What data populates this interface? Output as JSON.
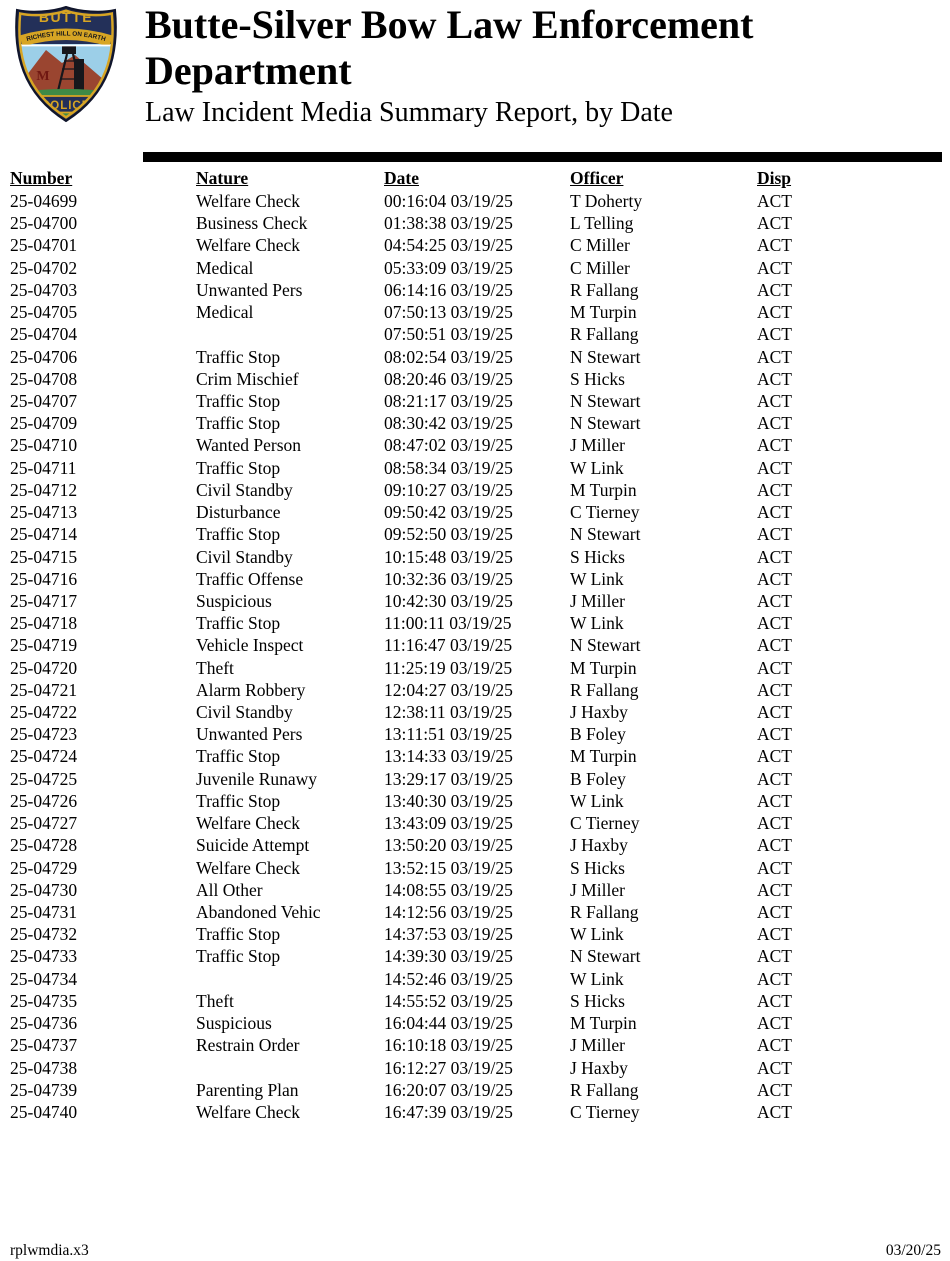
{
  "page": {
    "title": "Butte-Silver Bow Law Enforcement Department",
    "subtitle": "Law Incident Media Summary Report, by Date"
  },
  "badge": {
    "top_text": "BUTTE",
    "arc_text": "RICHEST HILL ON EARTH",
    "mountain_letter": "M",
    "banner_text": "POLICE",
    "colors": {
      "navy": "#233059",
      "gold": "#d7a524",
      "sky": "#9ccfe8",
      "hill": "#9a4530",
      "grass": "#3e8a46",
      "letter_maroon": "#701812",
      "structure_black": "#17171c"
    }
  },
  "table": {
    "columns": [
      "Number",
      "Nature",
      "Date",
      "Officer",
      "Disp"
    ],
    "rows": [
      {
        "number": "25-04699",
        "nature": "Welfare Check",
        "date": "00:16:04 03/19/25",
        "officer": "T Doherty",
        "disp": "ACT"
      },
      {
        "number": "25-04700",
        "nature": "Business Check",
        "date": "01:38:38 03/19/25",
        "officer": "L Telling",
        "disp": "ACT"
      },
      {
        "number": "25-04701",
        "nature": "Welfare Check",
        "date": "04:54:25 03/19/25",
        "officer": "C Miller",
        "disp": "ACT"
      },
      {
        "number": "25-04702",
        "nature": "Medical",
        "date": "05:33:09 03/19/25",
        "officer": "C Miller",
        "disp": "ACT"
      },
      {
        "number": "25-04703",
        "nature": "Unwanted Pers",
        "date": "06:14:16 03/19/25",
        "officer": "R Fallang",
        "disp": "ACT"
      },
      {
        "number": "25-04705",
        "nature": "Medical",
        "date": "07:50:13 03/19/25",
        "officer": "M Turpin",
        "disp": "ACT"
      },
      {
        "number": "25-04704",
        "nature": "",
        "date": "07:50:51 03/19/25",
        "officer": "R Fallang",
        "disp": "ACT"
      },
      {
        "number": "25-04706",
        "nature": "Traffic Stop",
        "date": "08:02:54 03/19/25",
        "officer": "N Stewart",
        "disp": "ACT"
      },
      {
        "number": "25-04708",
        "nature": "Crim Mischief",
        "date": "08:20:46 03/19/25",
        "officer": "S Hicks",
        "disp": "ACT"
      },
      {
        "number": "25-04707",
        "nature": "Traffic Stop",
        "date": "08:21:17 03/19/25",
        "officer": "N Stewart",
        "disp": "ACT"
      },
      {
        "number": "25-04709",
        "nature": "Traffic Stop",
        "date": "08:30:42 03/19/25",
        "officer": "N Stewart",
        "disp": "ACT"
      },
      {
        "number": "25-04710",
        "nature": "Wanted Person",
        "date": "08:47:02 03/19/25",
        "officer": "J Miller",
        "disp": "ACT"
      },
      {
        "number": "25-04711",
        "nature": "Traffic Stop",
        "date": "08:58:34 03/19/25",
        "officer": "W Link",
        "disp": "ACT"
      },
      {
        "number": "25-04712",
        "nature": "Civil Standby",
        "date": "09:10:27 03/19/25",
        "officer": "M Turpin",
        "disp": "ACT"
      },
      {
        "number": "25-04713",
        "nature": "Disturbance",
        "date": "09:50:42 03/19/25",
        "officer": "C Tierney",
        "disp": "ACT"
      },
      {
        "number": "25-04714",
        "nature": "Traffic Stop",
        "date": "09:52:50 03/19/25",
        "officer": "N Stewart",
        "disp": "ACT"
      },
      {
        "number": "25-04715",
        "nature": "Civil Standby",
        "date": "10:15:48 03/19/25",
        "officer": "S Hicks",
        "disp": "ACT"
      },
      {
        "number": "25-04716",
        "nature": "Traffic Offense",
        "date": "10:32:36 03/19/25",
        "officer": "W Link",
        "disp": "ACT"
      },
      {
        "number": "25-04717",
        "nature": "Suspicious",
        "date": "10:42:30 03/19/25",
        "officer": "J Miller",
        "disp": "ACT"
      },
      {
        "number": "25-04718",
        "nature": "Traffic Stop",
        "date": "11:00:11 03/19/25",
        "officer": "W Link",
        "disp": "ACT"
      },
      {
        "number": "25-04719",
        "nature": "Vehicle Inspect",
        "date": "11:16:47 03/19/25",
        "officer": "N Stewart",
        "disp": "ACT"
      },
      {
        "number": "25-04720",
        "nature": "Theft",
        "date": "11:25:19 03/19/25",
        "officer": "M Turpin",
        "disp": "ACT"
      },
      {
        "number": "25-04721",
        "nature": "Alarm Robbery",
        "date": "12:04:27 03/19/25",
        "officer": "R Fallang",
        "disp": "ACT"
      },
      {
        "number": "25-04722",
        "nature": "Civil Standby",
        "date": "12:38:11 03/19/25",
        "officer": "J Haxby",
        "disp": "ACT"
      },
      {
        "number": "25-04723",
        "nature": "Unwanted Pers",
        "date": "13:11:51 03/19/25",
        "officer": "B Foley",
        "disp": "ACT"
      },
      {
        "number": "25-04724",
        "nature": "Traffic Stop",
        "date": "13:14:33 03/19/25",
        "officer": "M Turpin",
        "disp": "ACT"
      },
      {
        "number": "25-04725",
        "nature": "Juvenile Runawy",
        "date": "13:29:17 03/19/25",
        "officer": "B Foley",
        "disp": "ACT"
      },
      {
        "number": "25-04726",
        "nature": "Traffic Stop",
        "date": "13:40:30 03/19/25",
        "officer": "W Link",
        "disp": "ACT"
      },
      {
        "number": "25-04727",
        "nature": "Welfare Check",
        "date": "13:43:09 03/19/25",
        "officer": "C Tierney",
        "disp": "ACT"
      },
      {
        "number": "25-04728",
        "nature": "Suicide Attempt",
        "date": "13:50:20 03/19/25",
        "officer": "J Haxby",
        "disp": "ACT"
      },
      {
        "number": "25-04729",
        "nature": "Welfare Check",
        "date": "13:52:15 03/19/25",
        "officer": "S Hicks",
        "disp": "ACT"
      },
      {
        "number": "25-04730",
        "nature": "All Other",
        "date": "14:08:55 03/19/25",
        "officer": "J Miller",
        "disp": "ACT"
      },
      {
        "number": "25-04731",
        "nature": "Abandoned Vehic",
        "date": "14:12:56 03/19/25",
        "officer": "R Fallang",
        "disp": "ACT"
      },
      {
        "number": "25-04732",
        "nature": "Traffic Stop",
        "date": "14:37:53 03/19/25",
        "officer": "W Link",
        "disp": "ACT"
      },
      {
        "number": "25-04733",
        "nature": "Traffic Stop",
        "date": "14:39:30 03/19/25",
        "officer": "N Stewart",
        "disp": "ACT"
      },
      {
        "number": "25-04734",
        "nature": "",
        "date": "14:52:46 03/19/25",
        "officer": "W Link",
        "disp": "ACT"
      },
      {
        "number": "25-04735",
        "nature": "Theft",
        "date": "14:55:52 03/19/25",
        "officer": "S Hicks",
        "disp": "ACT"
      },
      {
        "number": "25-04736",
        "nature": "Suspicious",
        "date": "16:04:44 03/19/25",
        "officer": "M Turpin",
        "disp": "ACT"
      },
      {
        "number": "25-04737",
        "nature": "Restrain Order",
        "date": "16:10:18 03/19/25",
        "officer": "J Miller",
        "disp": "ACT"
      },
      {
        "number": "25-04738",
        "nature": "",
        "date": "16:12:27 03/19/25",
        "officer": "J Haxby",
        "disp": "ACT"
      },
      {
        "number": "25-04739",
        "nature": "Parenting Plan",
        "date": "16:20:07 03/19/25",
        "officer": "R Fallang",
        "disp": "ACT"
      },
      {
        "number": "25-04740",
        "nature": "Welfare Check",
        "date": "16:47:39 03/19/25",
        "officer": "C Tierney",
        "disp": "ACT"
      }
    ]
  },
  "footer": {
    "left": "rplwmdia.x3",
    "right": "03/20/25"
  }
}
